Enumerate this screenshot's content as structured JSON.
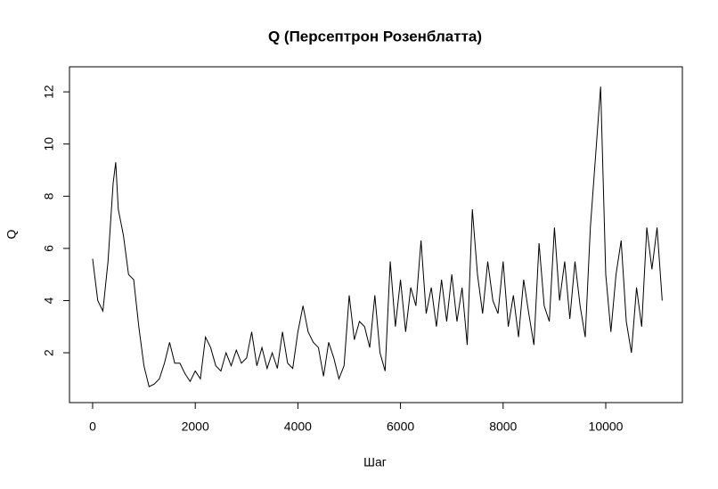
{
  "chart_data": {
    "type": "line",
    "title": "Q (Персептрон Розенблатта)",
    "xlabel": "Шаг",
    "ylabel": "Q",
    "x": [
      0,
      100,
      200,
      300,
      400,
      450,
      500,
      600,
      700,
      800,
      900,
      1000,
      1100,
      1200,
      1300,
      1400,
      1500,
      1600,
      1700,
      1800,
      1900,
      2000,
      2100,
      2200,
      2300,
      2400,
      2500,
      2600,
      2700,
      2800,
      2900,
      3000,
      3100,
      3200,
      3300,
      3400,
      3500,
      3600,
      3700,
      3800,
      3900,
      4000,
      4100,
      4200,
      4300,
      4400,
      4500,
      4600,
      4700,
      4800,
      4900,
      5000,
      5100,
      5200,
      5300,
      5400,
      5500,
      5600,
      5700,
      5800,
      5900,
      6000,
      6100,
      6200,
      6300,
      6400,
      6500,
      6600,
      6700,
      6800,
      6900,
      7000,
      7100,
      7200,
      7300,
      7400,
      7500,
      7600,
      7700,
      7800,
      7900,
      8000,
      8100,
      8200,
      8300,
      8400,
      8500,
      8600,
      8700,
      8800,
      8900,
      9000,
      9100,
      9200,
      9300,
      9400,
      9500,
      9600,
      9700,
      9800,
      9900,
      10000,
      10100,
      10200,
      10300,
      10400,
      10500,
      10600,
      10700,
      10800,
      10900,
      11000,
      11100
    ],
    "values": [
      5.6,
      4.0,
      3.6,
      5.5,
      8.5,
      9.3,
      7.5,
      6.5,
      5.0,
      4.8,
      3.0,
      1.5,
      0.7,
      0.8,
      1.0,
      1.6,
      2.4,
      1.6,
      1.6,
      1.2,
      0.9,
      1.3,
      1.0,
      2.6,
      2.2,
      1.5,
      1.3,
      2.0,
      1.5,
      2.1,
      1.6,
      1.8,
      2.8,
      1.5,
      2.2,
      1.4,
      2.0,
      1.4,
      2.8,
      1.6,
      1.4,
      2.8,
      3.8,
      2.8,
      2.4,
      2.2,
      1.1,
      2.4,
      1.8,
      1.0,
      1.5,
      4.2,
      2.5,
      3.2,
      3.0,
      2.2,
      4.2,
      2.0,
      1.3,
      5.5,
      3.0,
      4.8,
      2.8,
      4.5,
      3.8,
      6.3,
      3.5,
      4.5,
      3.0,
      4.8,
      3.2,
      5.0,
      3.2,
      4.5,
      2.3,
      7.5,
      5.0,
      3.5,
      5.5,
      4.0,
      3.5,
      5.5,
      3.0,
      4.2,
      2.6,
      4.8,
      3.5,
      2.3,
      6.2,
      3.8,
      3.2,
      6.8,
      4.0,
      5.5,
      3.3,
      5.5,
      3.8,
      2.6,
      6.8,
      9.5,
      12.2,
      5.0,
      2.8,
      5.0,
      6.3,
      3.2,
      2.0,
      4.5,
      3.0,
      6.8,
      5.2,
      6.8,
      4.0
    ],
    "color": "#000000",
    "xlim": [
      -451,
      11493
    ],
    "ylim": [
      0.09,
      12.96
    ],
    "xticks": [
      0,
      2000,
      4000,
      6000,
      8000,
      10000
    ],
    "yticks": [
      2,
      4,
      6,
      8,
      10,
      12
    ]
  }
}
